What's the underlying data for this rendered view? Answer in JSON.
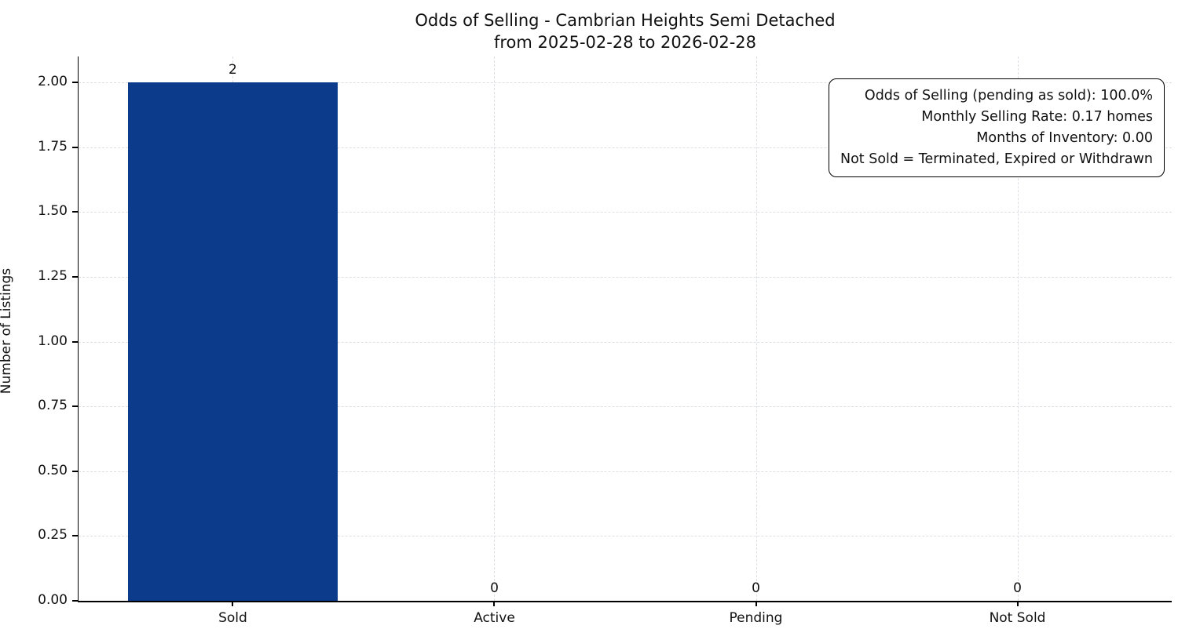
{
  "chart_data": {
    "type": "bar",
    "title": "Odds of Selling - Cambrian Heights Semi Detached",
    "subtitle": "from 2025-02-28 to 2026-02-28",
    "categories": [
      "Sold",
      "Active",
      "Pending",
      "Not Sold"
    ],
    "values": [
      2,
      0,
      0,
      0
    ],
    "bar_labels": [
      "2",
      "0",
      "0",
      "0"
    ],
    "xlabel": "",
    "ylabel": "Number of Listings",
    "ylim": [
      0,
      2.1
    ],
    "ytick_values": [
      0,
      0.25,
      0.5,
      0.75,
      1.0,
      1.25,
      1.5,
      1.75,
      2.0
    ],
    "ytick_labels": [
      "0.00",
      "0.25",
      "0.50",
      "0.75",
      "1.00",
      "1.25",
      "1.50",
      "1.75",
      "2.00"
    ],
    "grid": "dashed-both",
    "legend": "none",
    "bar_color": "#0d3b8c",
    "annotation": {
      "lines": [
        "Odds of Selling (pending as sold): 100.0%",
        "Monthly Selling Rate: 0.17 homes",
        "Months of Inventory: 0.00",
        "Not Sold = Terminated, Expired or Withdrawn"
      ]
    }
  }
}
